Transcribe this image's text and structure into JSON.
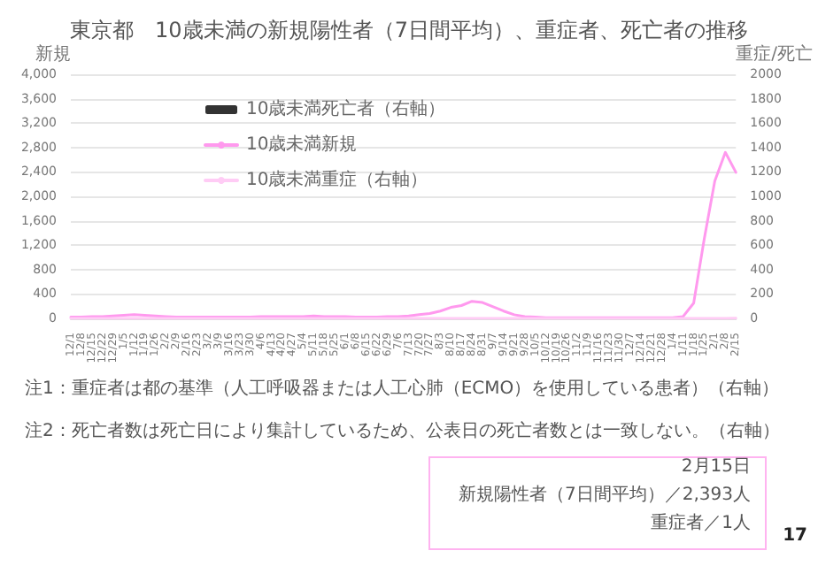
{
  "chart_data": {
    "type": "line",
    "title": "東京都　10歳未満の新規陽性者（7日間平均）、重症者、死亡者の推移",
    "ylabel": "新規",
    "y2label": "重症/死亡",
    "categories": [
      "12/1",
      "12/8",
      "12/15",
      "12/22",
      "12/29",
      "1/5",
      "1/12",
      "1/19",
      "1/26",
      "2/2",
      "2/9",
      "2/16",
      "2/23",
      "3/2",
      "3/9",
      "3/16",
      "3/23",
      "3/30",
      "4/6",
      "4/13",
      "4/20",
      "4/27",
      "5/4",
      "5/11",
      "5/18",
      "5/25",
      "6/1",
      "6/8",
      "6/15",
      "6/22",
      "6/29",
      "7/6",
      "7/13",
      "7/20",
      "7/27",
      "8/3",
      "8/10",
      "8/17",
      "8/24",
      "8/31",
      "9/7",
      "9/14",
      "9/21",
      "9/28",
      "10/5",
      "10/12",
      "10/19",
      "10/26",
      "11/2",
      "11/9",
      "11/16",
      "11/23",
      "11/30",
      "12/7",
      "12/14",
      "12/21",
      "12/28",
      "1/4",
      "1/11",
      "1/18",
      "1/25",
      "2/1",
      "2/8",
      "2/15"
    ],
    "series": [
      {
        "name": "10歳未満死亡者（右軸）",
        "type": "bar",
        "axis": "y2",
        "color": "#333333",
        "values": [
          0,
          0,
          0,
          0,
          0,
          0,
          0,
          0,
          0,
          0,
          0,
          0,
          0,
          0,
          0,
          0,
          0,
          0,
          0,
          0,
          0,
          0,
          0,
          0,
          0,
          0,
          0,
          0,
          0,
          0,
          0,
          0,
          0,
          0,
          0,
          0,
          0,
          0,
          0,
          0,
          0,
          0,
          0,
          0,
          0,
          0,
          0,
          0,
          0,
          0,
          0,
          0,
          0,
          0,
          0,
          0,
          0,
          0,
          0,
          0,
          0,
          0,
          0,
          0
        ]
      },
      {
        "name": "10歳未満新規",
        "color": "#ff99ee",
        "values": [
          20,
          20,
          30,
          30,
          40,
          50,
          60,
          50,
          40,
          30,
          20,
          20,
          20,
          20,
          20,
          20,
          20,
          20,
          30,
          30,
          30,
          30,
          30,
          40,
          30,
          30,
          30,
          20,
          20,
          20,
          30,
          30,
          40,
          60,
          80,
          120,
          180,
          210,
          280,
          260,
          190,
          120,
          60,
          30,
          20,
          10,
          10,
          10,
          10,
          10,
          10,
          10,
          10,
          10,
          10,
          10,
          10,
          10,
          30,
          250,
          1300,
          2250,
          2720,
          2393
        ]
      },
      {
        "name": "10歳未満重症（右軸）",
        "axis": "y2",
        "color": "#ffccf5",
        "values": [
          0,
          0,
          0,
          0,
          0,
          0,
          0,
          0,
          0,
          0,
          0,
          0,
          0,
          0,
          0,
          0,
          0,
          0,
          0,
          0,
          0,
          0,
          0,
          0,
          0,
          0,
          0,
          0,
          0,
          0,
          0,
          0,
          0,
          0,
          0,
          0,
          0,
          0,
          0,
          0,
          0,
          0,
          0,
          0,
          0,
          0,
          0,
          0,
          0,
          0,
          0,
          0,
          0,
          0,
          0,
          0,
          0,
          0,
          0,
          0,
          0,
          0,
          0,
          1
        ]
      }
    ],
    "ylim": [
      0,
      4000
    ],
    "yticks": [
      0,
      {
        "value": 400,
        "label": "400"
      },
      {
        "value": 800,
        "label": "800"
      },
      {
        "value": 1200,
        "label": "1,200"
      },
      {
        "value": 1600,
        "label": "1,600"
      },
      {
        "value": 2000,
        "label": "2,000"
      },
      {
        "value": 2400,
        "label": "2,400"
      },
      {
        "value": 2800,
        "label": "2,800"
      },
      {
        "value": 3200,
        "label": "3,200"
      },
      {
        "value": 3600,
        "label": "3,600"
      },
      {
        "value": 4000,
        "label": "4,000"
      }
    ],
    "y2lim": [
      0,
      2000
    ],
    "y2ticks": [
      0,
      200,
      400,
      600,
      800,
      1000,
      1200,
      1400,
      1600,
      1800,
      2000
    ],
    "grid": "y",
    "legend": "top left",
    "marker": "none",
    "line_style": "solid",
    "annotations": [
      "注1：重症者は都の基準（人工呼吸器または人工心肺（ECMO）を使用している患者）（右軸）",
      "注2：死亡者数は死亡日により集計しているため、公表日の死亡者数とは一致しない。（右軸）",
      "2月15日",
      "新規陽性者（7日間平均）／2,393人",
      "重症者／1人",
      "17"
    ]
  }
}
